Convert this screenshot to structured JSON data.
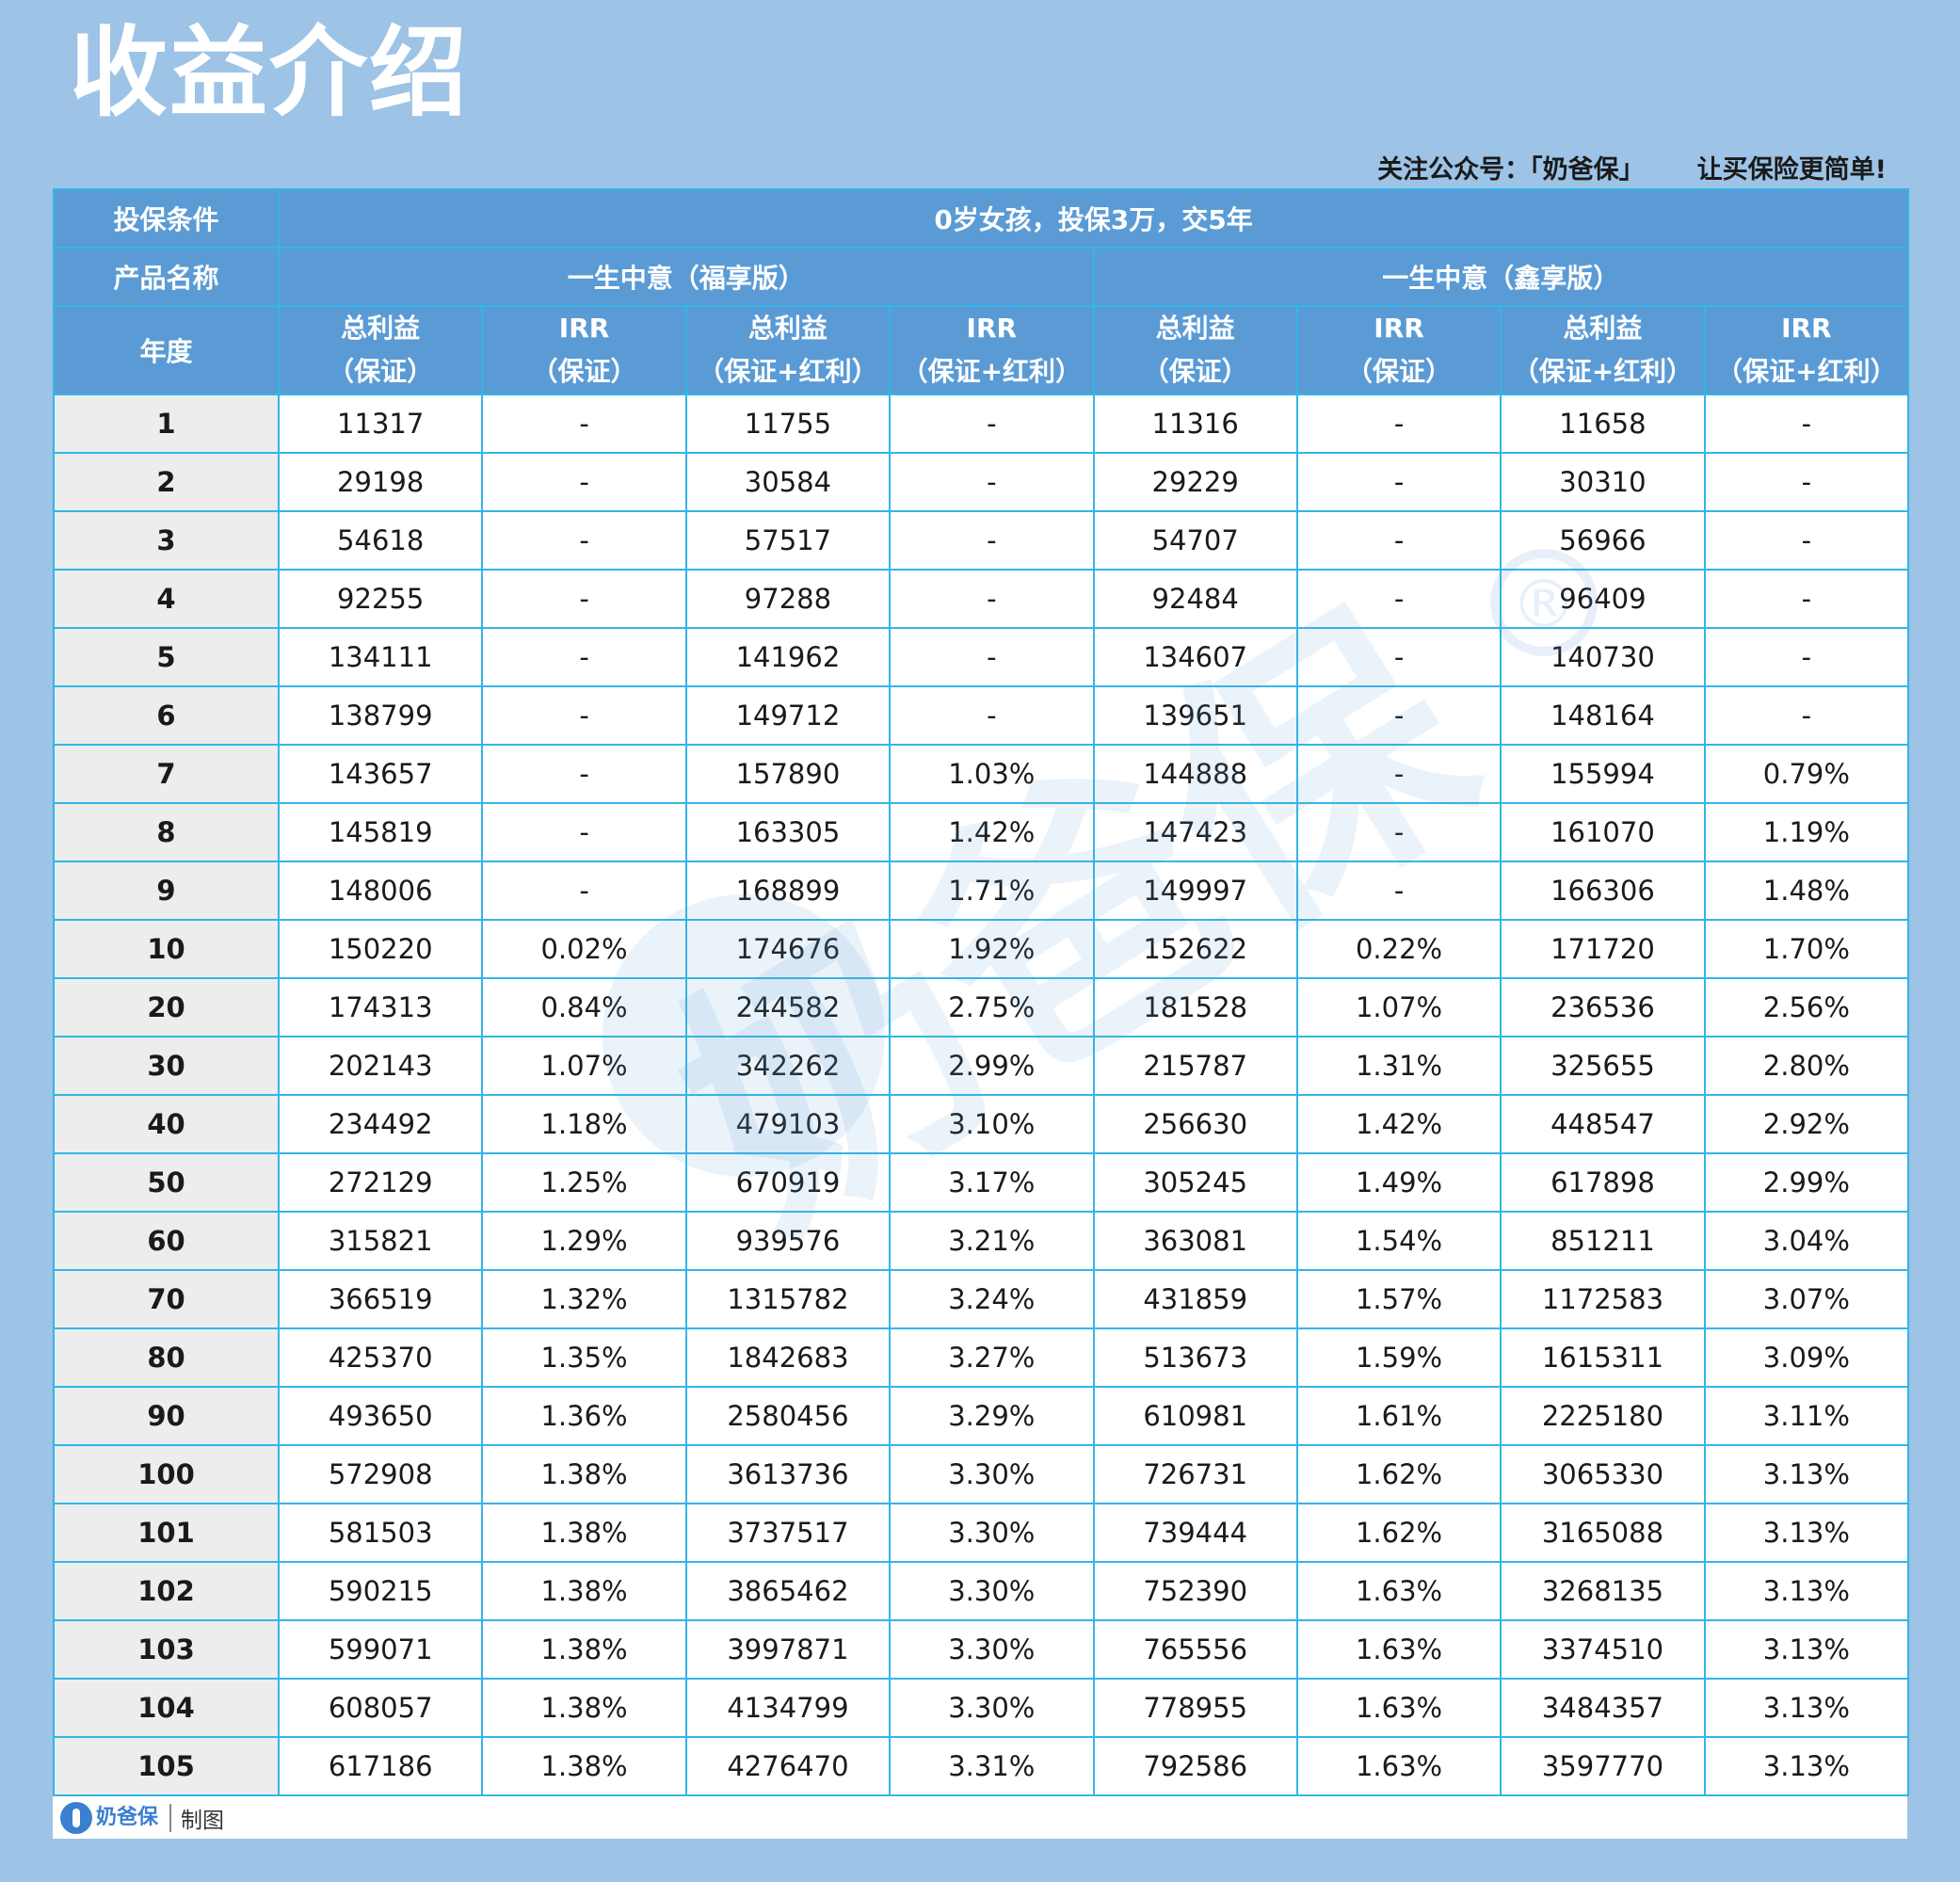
{
  "page": {
    "title": "收益介绍",
    "promo_left": "关注公众号：「奶爸保」",
    "promo_right": "让买保险更简单!"
  },
  "table": {
    "condition_label": "投保条件",
    "condition_value": "0岁女孩，投保3万，交5年",
    "product_label": "产品名称",
    "product_a": "一生中意（福享版）",
    "product_b": "一生中意（鑫享版）",
    "year_label": "年度",
    "col_headers": [
      {
        "l1": "总利益",
        "l2": "（保证）"
      },
      {
        "l1": "IRR",
        "l2": "（保证）"
      },
      {
        "l1": "总利益",
        "l2": "（保证+红利）"
      },
      {
        "l1": "IRR",
        "l2": "（保证+红利）"
      },
      {
        "l1": "总利益",
        "l2": "（保证）"
      },
      {
        "l1": "IRR",
        "l2": "（保证）"
      },
      {
        "l1": "总利益",
        "l2": "（保证+红利）"
      },
      {
        "l1": "IRR",
        "l2": "（保证+红利）"
      }
    ],
    "rows": [
      [
        "1",
        "11317",
        "-",
        "11755",
        "-",
        "11316",
        "-",
        "11658",
        "-"
      ],
      [
        "2",
        "29198",
        "-",
        "30584",
        "-",
        "29229",
        "-",
        "30310",
        "-"
      ],
      [
        "3",
        "54618",
        "-",
        "57517",
        "-",
        "54707",
        "-",
        "56966",
        "-"
      ],
      [
        "4",
        "92255",
        "-",
        "97288",
        "-",
        "92484",
        "-",
        "96409",
        "-"
      ],
      [
        "5",
        "134111",
        "-",
        "141962",
        "-",
        "134607",
        "-",
        "140730",
        "-"
      ],
      [
        "6",
        "138799",
        "-",
        "149712",
        "-",
        "139651",
        "-",
        "148164",
        "-"
      ],
      [
        "7",
        "143657",
        "-",
        "157890",
        "1.03%",
        "144888",
        "-",
        "155994",
        "0.79%"
      ],
      [
        "8",
        "145819",
        "-",
        "163305",
        "1.42%",
        "147423",
        "-",
        "161070",
        "1.19%"
      ],
      [
        "9",
        "148006",
        "-",
        "168899",
        "1.71%",
        "149997",
        "-",
        "166306",
        "1.48%"
      ],
      [
        "10",
        "150220",
        "0.02%",
        "174676",
        "1.92%",
        "152622",
        "0.22%",
        "171720",
        "1.70%"
      ],
      [
        "20",
        "174313",
        "0.84%",
        "244582",
        "2.75%",
        "181528",
        "1.07%",
        "236536",
        "2.56%"
      ],
      [
        "30",
        "202143",
        "1.07%",
        "342262",
        "2.99%",
        "215787",
        "1.31%",
        "325655",
        "2.80%"
      ],
      [
        "40",
        "234492",
        "1.18%",
        "479103",
        "3.10%",
        "256630",
        "1.42%",
        "448547",
        "2.92%"
      ],
      [
        "50",
        "272129",
        "1.25%",
        "670919",
        "3.17%",
        "305245",
        "1.49%",
        "617898",
        "2.99%"
      ],
      [
        "60",
        "315821",
        "1.29%",
        "939576",
        "3.21%",
        "363081",
        "1.54%",
        "851211",
        "3.04%"
      ],
      [
        "70",
        "366519",
        "1.32%",
        "1315782",
        "3.24%",
        "431859",
        "1.57%",
        "1172583",
        "3.07%"
      ],
      [
        "80",
        "425370",
        "1.35%",
        "1842683",
        "3.27%",
        "513673",
        "1.59%",
        "1615311",
        "3.09%"
      ],
      [
        "90",
        "493650",
        "1.36%",
        "2580456",
        "3.29%",
        "610981",
        "1.61%",
        "2225180",
        "3.11%"
      ],
      [
        "100",
        "572908",
        "1.38%",
        "3613736",
        "3.30%",
        "726731",
        "1.62%",
        "3065330",
        "3.13%"
      ],
      [
        "101",
        "581503",
        "1.38%",
        "3737517",
        "3.30%",
        "739444",
        "1.62%",
        "3165088",
        "3.13%"
      ],
      [
        "102",
        "590215",
        "1.38%",
        "3865462",
        "3.30%",
        "752390",
        "1.63%",
        "3268135",
        "3.13%"
      ],
      [
        "103",
        "599071",
        "1.38%",
        "3997871",
        "3.30%",
        "765556",
        "1.63%",
        "3374510",
        "3.13%"
      ],
      [
        "104",
        "608057",
        "1.38%",
        "4134799",
        "3.30%",
        "778955",
        "1.63%",
        "3484357",
        "3.13%"
      ],
      [
        "105",
        "617186",
        "1.38%",
        "4276470",
        "3.31%",
        "792586",
        "1.63%",
        "3597770",
        "3.13%"
      ]
    ]
  },
  "footer": {
    "brand": "奶爸保",
    "made_by": "制图"
  },
  "watermark": {
    "text": "奶爸保",
    "mark": "®"
  },
  "colors": {
    "background": "#9dc3e6",
    "header": "#5b9bd5",
    "border": "#33b6e8",
    "year_cell": "#ededed",
    "brand": "#3a7fd0"
  }
}
